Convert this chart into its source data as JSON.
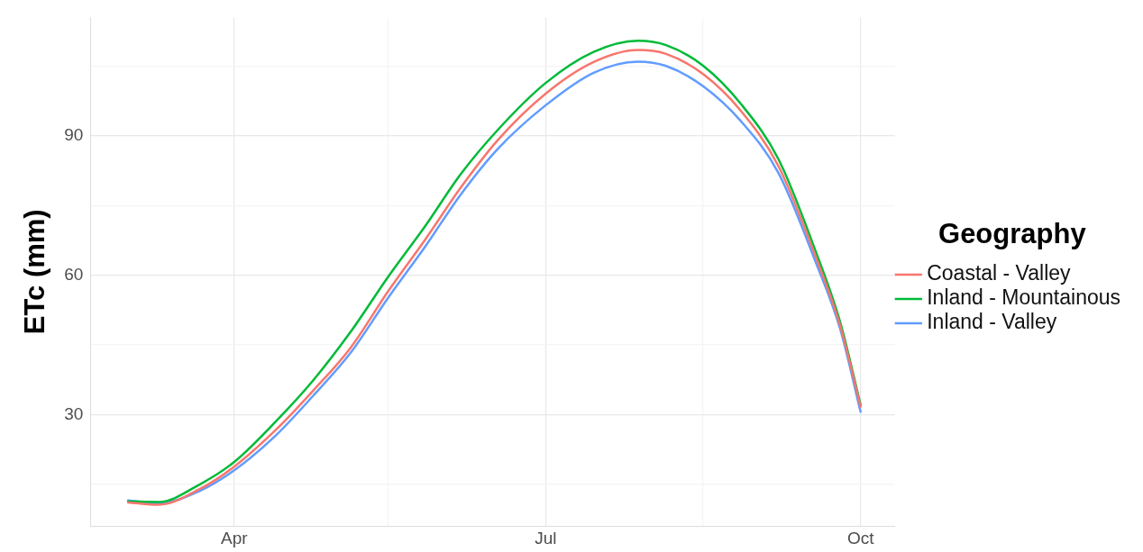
{
  "chart_data": {
    "type": "line",
    "ylabel": "ETc (mm)",
    "legend_title": "Geography",
    "legend": "right",
    "grid": true,
    "marker": "none",
    "line_style": "solid",
    "x": [
      "--03-01",
      "--03-10",
      "--03-22",
      "--04-01",
      "--04-13",
      "--04-24",
      "--05-05",
      "--05-16",
      "--05-27",
      "--06-06",
      "--06-17",
      "--07-01",
      "--07-15",
      "--07-28",
      "--08-05",
      "--08-16",
      "--08-27",
      "--09-07",
      "--09-18",
      "--09-25",
      "--10-01"
    ],
    "xlim": [
      "--02-19",
      "--10-11"
    ],
    "xticks": [
      {
        "value": "--04-01",
        "label": "Apr"
      },
      {
        "value": "--05-16",
        "label": null
      },
      {
        "value": "--07-01",
        "label": "Jul"
      },
      {
        "value": "--08-16",
        "label": null
      },
      {
        "value": "--10-01",
        "label": "Oct"
      }
    ],
    "ylim": [
      6,
      115.5
    ],
    "yticks": [
      {
        "value": 15,
        "label": null
      },
      30,
      {
        "value": 45,
        "label": null
      },
      60,
      {
        "value": 75,
        "label": null
      },
      90,
      {
        "value": 105,
        "label": null
      }
    ],
    "series": [
      {
        "name": "Coastal - Valley",
        "color": "#f8766d",
        "values": [
          11.1,
          10.6,
          14.0,
          18.8,
          26.6,
          35.1,
          44.4,
          56.6,
          67.9,
          78.7,
          89.1,
          99.1,
          105.9,
          108.5,
          107.7,
          103.3,
          95.4,
          83.5,
          63.7,
          49.2,
          31.7
        ]
      },
      {
        "name": "Inland - Mountainous",
        "color": "#00ba38",
        "values": [
          11.3,
          11.2,
          15.0,
          19.8,
          28.4,
          37.3,
          47.8,
          59.7,
          70.8,
          81.6,
          91.3,
          101.4,
          108.1,
          110.5,
          109.6,
          105.1,
          96.9,
          85.0,
          64.9,
          50.0,
          32.1
        ]
      },
      {
        "name": "Inland - Valley",
        "color": "#619cff",
        "values": [
          11.5,
          10.9,
          13.6,
          18.0,
          25.4,
          34.0,
          43.3,
          55.2,
          66.4,
          77.2,
          87.2,
          96.6,
          103.6,
          106.0,
          105.1,
          100.7,
          93.2,
          82.0,
          62.6,
          48.5,
          30.6
        ]
      }
    ]
  }
}
